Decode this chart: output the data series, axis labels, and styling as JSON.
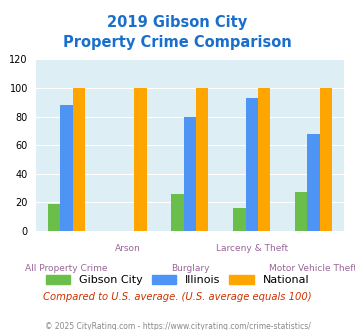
{
  "title_line1": "2019 Gibson City",
  "title_line2": "Property Crime Comparison",
  "title_color": "#1a6fcc",
  "categories": [
    "All Property Crime",
    "Arson",
    "Burglary",
    "Larceny & Theft",
    "Motor Vehicle Theft"
  ],
  "category_labels_top": [
    "",
    "Arson",
    "",
    "Larceny & Theft",
    ""
  ],
  "category_labels_bottom": [
    "All Property Crime",
    "",
    "Burglary",
    "",
    "Motor Vehicle Theft"
  ],
  "gibson_city": [
    19,
    0,
    26,
    16,
    27
  ],
  "illinois": [
    88,
    0,
    80,
    93,
    68
  ],
  "national": [
    100,
    100,
    100,
    100,
    100
  ],
  "gibson_color": "#6abf4b",
  "illinois_color": "#4d94f5",
  "national_color": "#ffa500",
  "bg_color": "#ddeef5",
  "ylim": [
    0,
    120
  ],
  "yticks": [
    0,
    20,
    40,
    60,
    80,
    100,
    120
  ],
  "footnote1": "Compared to U.S. average. (U.S. average equals 100)",
  "footnote2": "© 2025 CityRating.com - https://www.cityrating.com/crime-statistics/",
  "footnote1_color": "#cc3300",
  "footnote2_color": "#888888",
  "label_color": "#996699",
  "legend_labels": [
    "Gibson City",
    "Illinois",
    "National"
  ]
}
